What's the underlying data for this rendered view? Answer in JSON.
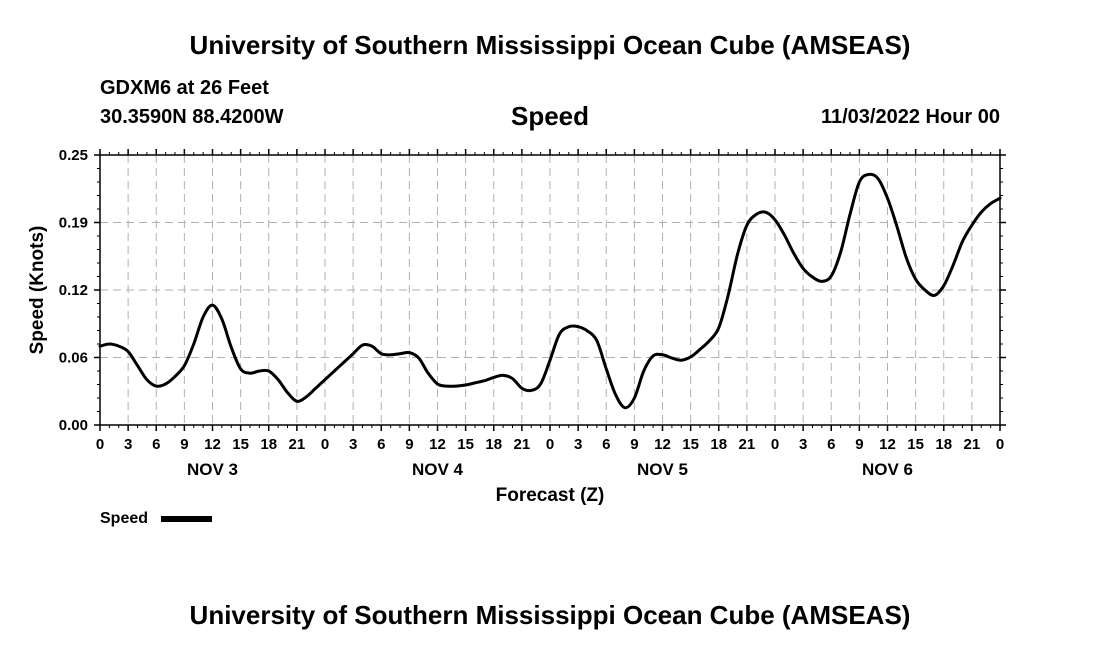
{
  "header": {
    "title": "University of Southern Mississippi Ocean Cube (AMSEAS)",
    "station": "GDXM6 at 26 Feet",
    "location": "30.3590N  88.4200W",
    "chart_title": "Speed",
    "datetime": "11/03/2022 Hour 00"
  },
  "legend": {
    "label": "Speed"
  },
  "footer": {
    "title": "University of Southern Mississippi Ocean Cube (AMSEAS)"
  },
  "chart_data": {
    "type": "line",
    "title": "Speed",
    "xlabel": "Forecast (Z)",
    "ylabel": "Speed (Knots)",
    "xlim": [
      0,
      96
    ],
    "ylim": [
      0,
      0.25
    ],
    "grid": true,
    "x_tick_hours": [
      0,
      3,
      6,
      9,
      12,
      15,
      18,
      21,
      24,
      27,
      30,
      33,
      36,
      39,
      42,
      45,
      48,
      51,
      54,
      57,
      60,
      63,
      66,
      69,
      72,
      75,
      78,
      81,
      84,
      87,
      90,
      93,
      96
    ],
    "x_tick_labels": [
      "0",
      "3",
      "6",
      "9",
      "12",
      "15",
      "18",
      "21",
      "0",
      "3",
      "6",
      "9",
      "12",
      "15",
      "18",
      "21",
      "0",
      "3",
      "6",
      "9",
      "12",
      "15",
      "18",
      "21",
      "0",
      "3",
      "6",
      "9",
      "12",
      "15",
      "18",
      "21",
      "0"
    ],
    "day_labels": [
      {
        "label": "NOV 3",
        "hour": 12
      },
      {
        "label": "NOV 4",
        "hour": 36
      },
      {
        "label": "NOV 5",
        "hour": 60
      },
      {
        "label": "NOV 6",
        "hour": 84
      }
    ],
    "y_ticks": [
      0.0,
      0.0625,
      0.125,
      0.1875,
      0.25
    ],
    "y_tick_labels": [
      "0.00",
      "0.06",
      "0.12",
      "0.19",
      "0.25"
    ],
    "series": [
      {
        "name": "Speed",
        "x": [
          0,
          1,
          2,
          3,
          4,
          5,
          6,
          7,
          8,
          9,
          10,
          11,
          12,
          13,
          14,
          15,
          16,
          17,
          18,
          19,
          20,
          21,
          22,
          23,
          24,
          25,
          26,
          27,
          28,
          29,
          30,
          31,
          32,
          33,
          34,
          35,
          36,
          37,
          38,
          39,
          40,
          41,
          42,
          43,
          44,
          45,
          46,
          47,
          48,
          49,
          50,
          51,
          52,
          53,
          54,
          55,
          56,
          57,
          58,
          59,
          60,
          61,
          62,
          63,
          64,
          65,
          66,
          67,
          68,
          69,
          70,
          71,
          72,
          73,
          74,
          75,
          76,
          77,
          78,
          79,
          80,
          81,
          82,
          83,
          84,
          85,
          86,
          87,
          88,
          89,
          90,
          91,
          92,
          93,
          94,
          95,
          96
        ],
        "values": [
          0.073,
          0.075,
          0.073,
          0.068,
          0.055,
          0.042,
          0.036,
          0.038,
          0.045,
          0.055,
          0.075,
          0.1,
          0.111,
          0.098,
          0.072,
          0.052,
          0.048,
          0.05,
          0.05,
          0.042,
          0.03,
          0.022,
          0.026,
          0.034,
          0.042,
          0.05,
          0.058,
          0.066,
          0.074,
          0.073,
          0.066,
          0.065,
          0.066,
          0.067,
          0.062,
          0.048,
          0.038,
          0.036,
          0.036,
          0.037,
          0.039,
          0.041,
          0.044,
          0.046,
          0.043,
          0.034,
          0.032,
          0.038,
          0.06,
          0.084,
          0.091,
          0.091,
          0.087,
          0.078,
          0.052,
          0.028,
          0.016,
          0.025,
          0.05,
          0.064,
          0.065,
          0.062,
          0.06,
          0.063,
          0.07,
          0.078,
          0.09,
          0.12,
          0.158,
          0.185,
          0.195,
          0.197,
          0.19,
          0.176,
          0.159,
          0.145,
          0.137,
          0.133,
          0.138,
          0.16,
          0.195,
          0.225,
          0.232,
          0.228,
          0.21,
          0.184,
          0.155,
          0.135,
          0.125,
          0.12,
          0.129,
          0.148,
          0.17,
          0.185,
          0.197,
          0.205,
          0.21
        ]
      }
    ]
  }
}
